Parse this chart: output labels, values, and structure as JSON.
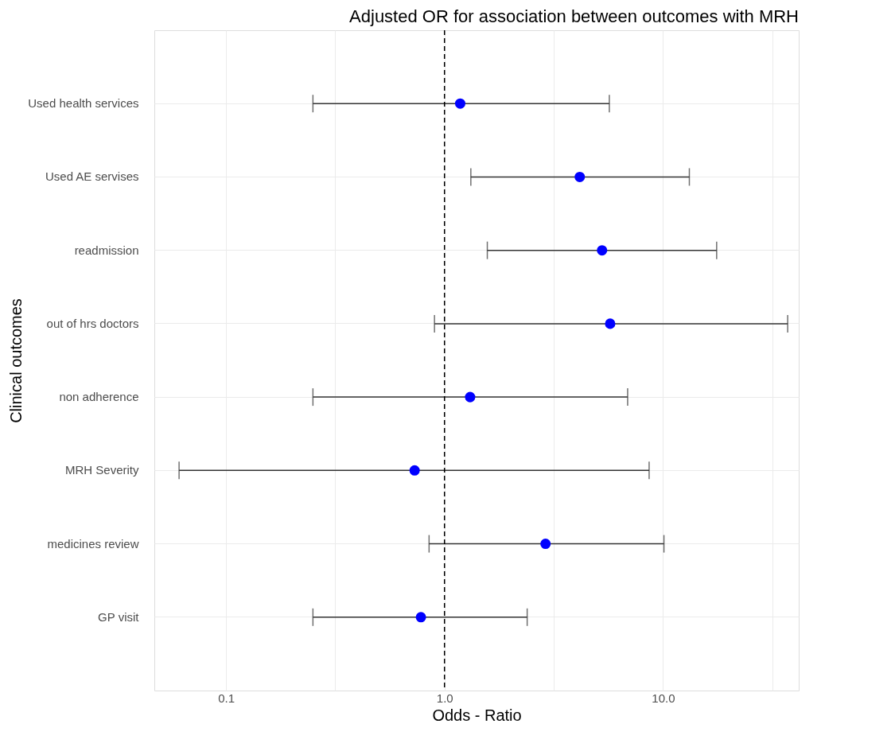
{
  "chart_data": {
    "type": "scatter",
    "orientation": "horizontal",
    "title": "Adjusted OR for association between outcomes with MRH",
    "xlabel": "Odds - Ratio",
    "ylabel": "Clinical outcomes",
    "categories": [
      "Used health services",
      "Used AE servises",
      "readmission",
      "out of hrs doctors",
      "non adherence",
      "MRH Severity",
      "medicines review",
      "GP visit"
    ],
    "series": [
      {
        "color": "#0000ff",
        "values": [
          1.18,
          4.16,
          5.26,
          5.73,
          1.31,
          0.73,
          2.9,
          0.78
        ],
        "errors": [
          [
            0.25,
            5.68
          ],
          [
            1.32,
            13.2
          ],
          [
            1.57,
            17.6
          ],
          [
            0.9,
            37.2
          ],
          [
            0.25,
            6.89
          ],
          [
            0.061,
            8.64
          ],
          [
            0.85,
            10.1
          ],
          [
            0.25,
            2.39
          ]
        ]
      }
    ],
    "log": "x",
    "xlim": [
      0.047,
      41.8
    ],
    "xticks": [
      {
        "value": 0.1,
        "label": "0.1"
      },
      {
        "value": 0.316,
        "label": null
      },
      {
        "value": 1,
        "label": "1.0"
      },
      {
        "value": 3.16,
        "label": null
      },
      {
        "value": 10,
        "label": "10.0"
      },
      {
        "value": 31.6,
        "label": null
      }
    ],
    "ref_lines": [
      {
        "axis": "x",
        "value": 1,
        "line_style": "dashed",
        "color": "#000000"
      }
    ],
    "grid": true,
    "marker": "circle"
  }
}
